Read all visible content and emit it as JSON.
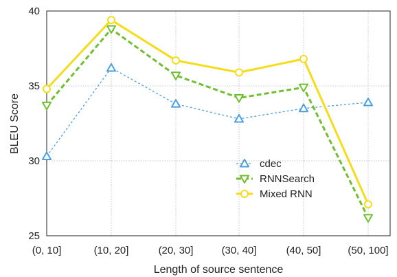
{
  "chart_data": {
    "type": "line",
    "xlabel": "Length of source sentence",
    "ylabel": "BLEU Score",
    "categories": [
      "(0, 10]",
      "(10, 20]",
      "(20, 30]",
      "(30, 40]",
      "(40, 50]",
      "(50, 100]"
    ],
    "ylim": [
      25,
      40
    ],
    "yticks": [
      25,
      30,
      35,
      40
    ],
    "grid": true,
    "legend_position": "lower-right",
    "series": [
      {
        "name": "cdec",
        "values": [
          30.3,
          36.2,
          33.8,
          32.8,
          33.5,
          33.9
        ],
        "color": "#4a9fe0",
        "marker": "triangle-up",
        "line": "dotted"
      },
      {
        "name": "RNNSearch",
        "values": [
          33.7,
          38.8,
          35.7,
          34.2,
          34.9,
          26.2
        ],
        "color": "#6fbf2e",
        "marker": "triangle-down",
        "line": "dashed"
      },
      {
        "name": "Mixed RNN",
        "values": [
          34.8,
          39.4,
          36.7,
          35.9,
          36.8,
          27.1
        ],
        "color": "#f5dc1a",
        "marker": "circle",
        "line": "solid"
      }
    ]
  }
}
